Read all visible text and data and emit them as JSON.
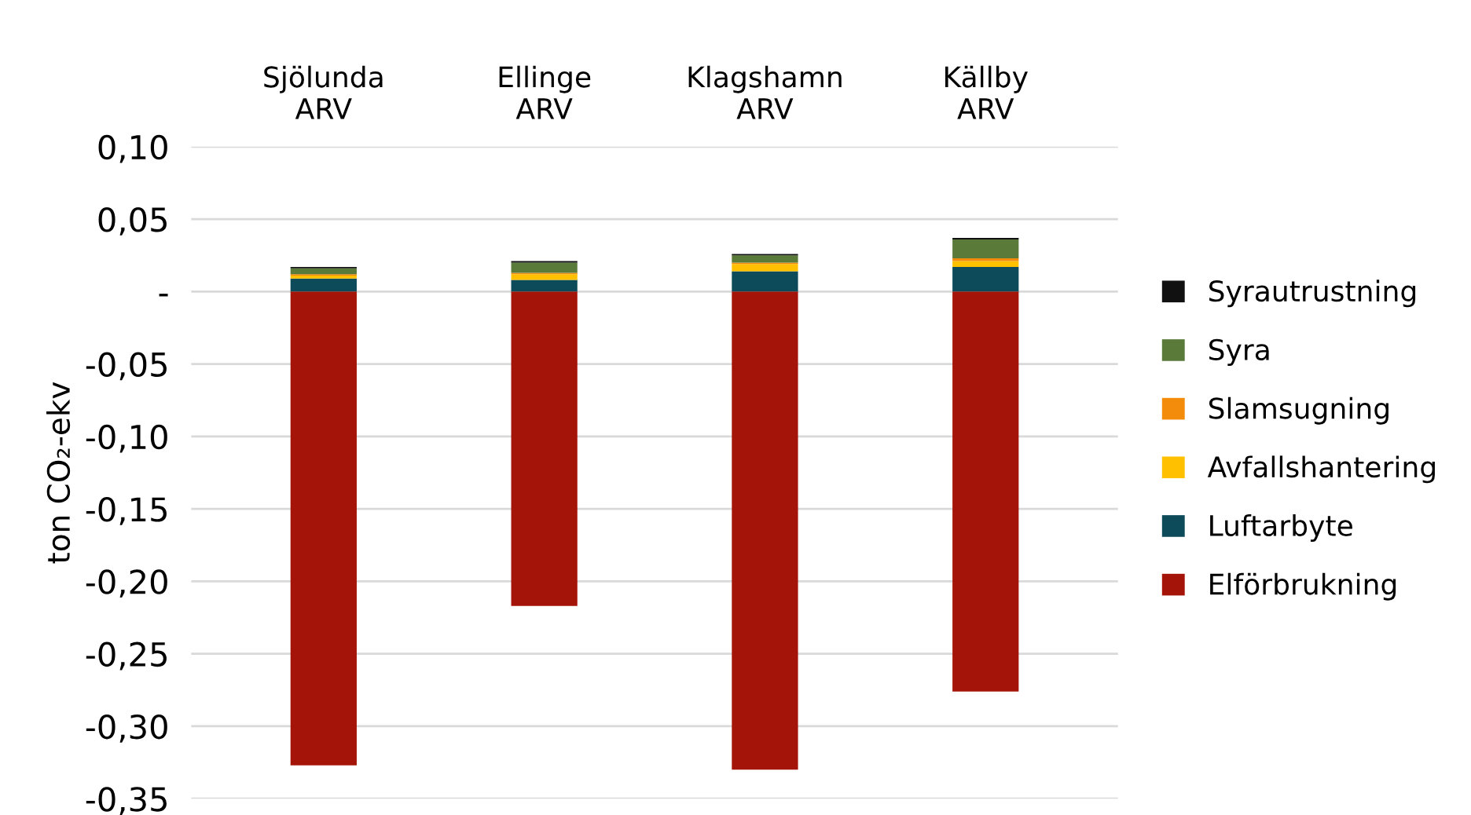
{
  "chart_data": {
    "type": "bar",
    "stacked": true,
    "ylabel": "ton CO₂-ekv",
    "categories": [
      "Sjölunda\nARV",
      "Ellinge\nARV",
      "Klagshamn\nARV",
      "Källby\nARV"
    ],
    "series": [
      {
        "name": "Elförbrukning",
        "color": "#a51408",
        "values": [
          -0.327,
          -0.217,
          -0.33,
          -0.276
        ]
      },
      {
        "name": "Luftarbyte",
        "color": "#0d4a5a",
        "values": [
          0.009,
          0.008,
          0.014,
          0.017
        ]
      },
      {
        "name": "Avfallshantering",
        "color": "#ffc000",
        "values": [
          0.002,
          0.004,
          0.005,
          0.004
        ]
      },
      {
        "name": "Slamsugning",
        "color": "#f28c0a",
        "values": [
          0.001,
          0.001,
          0.001,
          0.002
        ]
      },
      {
        "name": "Syra",
        "color": "#5a7a3a",
        "values": [
          0.004,
          0.007,
          0.005,
          0.013
        ]
      },
      {
        "name": "Syrautrustning",
        "color": "#111111",
        "values": [
          0.001,
          0.001,
          0.001,
          0.001
        ]
      }
    ],
    "ylim": [
      -0.35,
      0.1
    ],
    "yticks": [
      {
        "value": 0.1,
        "label": "0,10"
      },
      {
        "value": 0.05,
        "label": "0,05"
      },
      {
        "value": 0,
        "label": "-"
      },
      {
        "value": -0.05,
        "label": "-0,05"
      },
      {
        "value": -0.1,
        "label": "-0,10"
      },
      {
        "value": -0.15,
        "label": "-0,15"
      },
      {
        "value": -0.2,
        "label": "-0,20"
      },
      {
        "value": -0.25,
        "label": "-0,25"
      },
      {
        "value": -0.3,
        "label": "-0,30"
      },
      {
        "value": -0.35,
        "label": "-0,35"
      }
    ],
    "grid": "y",
    "legend": "right"
  }
}
